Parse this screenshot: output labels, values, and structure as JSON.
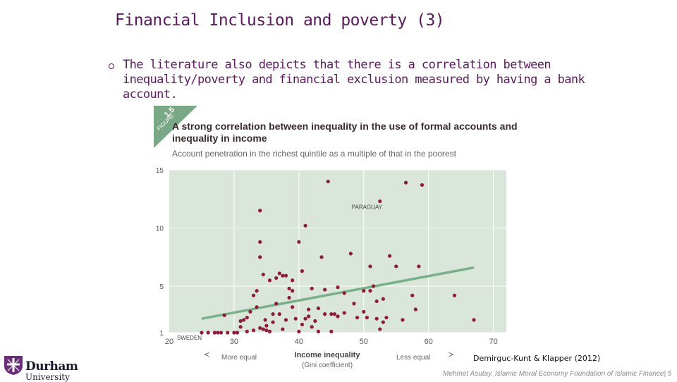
{
  "slide": {
    "title": "Financial Inclusion and poverty (3)",
    "bullet": "The literature also depicts that there is a correlation between inequality/poverty and financial exclusion measured by having a bank account.",
    "citation": "Demirguc-Kunt & Klapper (2012)",
    "footer": "Mehmet Asutay, Islamic Moral Economy Foundation of Islamic Finance| 5"
  },
  "figure": {
    "tag_number": "1.5",
    "tag_word": "FIGURE",
    "heading": "A strong correlation between inequality in the use of formal accounts and inequality in income",
    "subtitle": "Account penetration in the richest quintile as a multiple of that in the poorest"
  },
  "logo": {
    "name": "Durham",
    "sub": "University"
  },
  "colors": {
    "title": "#5b1a5e",
    "plot_bg": "#d9e6d9",
    "point": "#8e1b3a",
    "trend": "#79b08a"
  },
  "chart_data": {
    "type": "scatter",
    "xlabel": "Income inequality",
    "xlabel_sub": "(Gini coefficient)",
    "x_left_label": "More equal",
    "x_right_label": "Less equal",
    "x_ticks": [
      20,
      30,
      40,
      50,
      60,
      70
    ],
    "y_ticks": [
      1,
      5,
      10,
      15
    ],
    "xlim": [
      20,
      72
    ],
    "ylim": [
      1,
      15
    ],
    "grid": true,
    "annotations": [
      {
        "text": "PARAGUAY",
        "x": 52.5,
        "y": 12.5
      },
      {
        "text": "SWEDEN",
        "x": 25,
        "y": 1
      }
    ],
    "trend": [
      [
        25,
        2.2
      ],
      [
        67,
        6.6
      ]
    ],
    "points": [
      [
        25,
        1
      ],
      [
        26,
        1
      ],
      [
        27,
        1
      ],
      [
        27.5,
        1
      ],
      [
        28,
        1
      ],
      [
        28.5,
        2.5
      ],
      [
        29,
        1
      ],
      [
        30,
        1
      ],
      [
        30.5,
        1
      ],
      [
        31,
        1.5
      ],
      [
        31,
        2
      ],
      [
        31.5,
        2.1
      ],
      [
        32,
        2.3
      ],
      [
        32,
        1.1
      ],
      [
        32.5,
        2.8
      ],
      [
        33,
        1.2
      ],
      [
        33,
        4.2
      ],
      [
        33.5,
        4.6
      ],
      [
        33.5,
        3.2
      ],
      [
        34,
        1.4
      ],
      [
        34,
        11.5
      ],
      [
        34.5,
        1.3
      ],
      [
        34.5,
        6
      ],
      [
        34.8,
        2.1
      ],
      [
        34,
        8.8
      ],
      [
        34,
        7.5
      ],
      [
        35,
        1.2
      ],
      [
        35,
        1.6
      ],
      [
        35.5,
        5.5
      ],
      [
        35.5,
        1.1
      ],
      [
        36,
        1.9
      ],
      [
        36,
        2.6
      ],
      [
        36.5,
        5.7
      ],
      [
        36.5,
        3.5
      ],
      [
        37,
        2.6
      ],
      [
        37,
        6.1
      ],
      [
        37.5,
        1.3
      ],
      [
        37.5,
        5.9
      ],
      [
        38,
        2.1
      ],
      [
        38,
        5.9
      ],
      [
        38.5,
        4
      ],
      [
        38.5,
        4.8
      ],
      [
        39,
        4.6
      ],
      [
        39,
        5.5
      ],
      [
        39,
        3.2
      ],
      [
        39.5,
        2.2
      ],
      [
        40,
        1.1
      ],
      [
        40,
        8.8
      ],
      [
        40.5,
        6.3
      ],
      [
        40.5,
        1.7
      ],
      [
        41,
        2.2
      ],
      [
        41,
        10.2
      ],
      [
        41.5,
        2.4
      ],
      [
        41.5,
        3
      ],
      [
        42,
        4.8
      ],
      [
        42,
        1.5
      ],
      [
        42.5,
        2
      ],
      [
        43,
        1.1
      ],
      [
        43,
        3.1
      ],
      [
        43.5,
        7.5
      ],
      [
        44,
        4.7
      ],
      [
        44,
        2.6
      ],
      [
        44.5,
        14
      ],
      [
        45,
        1.1
      ],
      [
        45,
        2.6
      ],
      [
        45.5,
        2.6
      ],
      [
        46,
        2.4
      ],
      [
        46,
        4.9
      ],
      [
        47,
        2.7
      ],
      [
        47,
        4.4
      ],
      [
        48,
        7.8
      ],
      [
        48.5,
        3.5
      ],
      [
        49,
        2.3
      ],
      [
        50,
        4.6
      ],
      [
        50,
        2.8
      ],
      [
        50.5,
        2.3
      ],
      [
        51,
        6.7
      ],
      [
        51,
        4.6
      ],
      [
        51.5,
        5
      ],
      [
        52,
        3.7
      ],
      [
        52,
        2.2
      ],
      [
        52.5,
        1.3
      ],
      [
        53,
        1.9
      ],
      [
        52.5,
        12.3
      ],
      [
        53,
        3.9
      ],
      [
        53.5,
        2.3
      ],
      [
        54,
        7.6
      ],
      [
        55,
        6.7
      ],
      [
        56,
        2.1
      ],
      [
        56.5,
        13.9
      ],
      [
        57.5,
        4.2
      ],
      [
        58,
        3
      ],
      [
        58.5,
        6.7
      ],
      [
        59,
        13.7
      ],
      [
        64,
        4.2
      ],
      [
        67,
        2.1
      ]
    ]
  }
}
